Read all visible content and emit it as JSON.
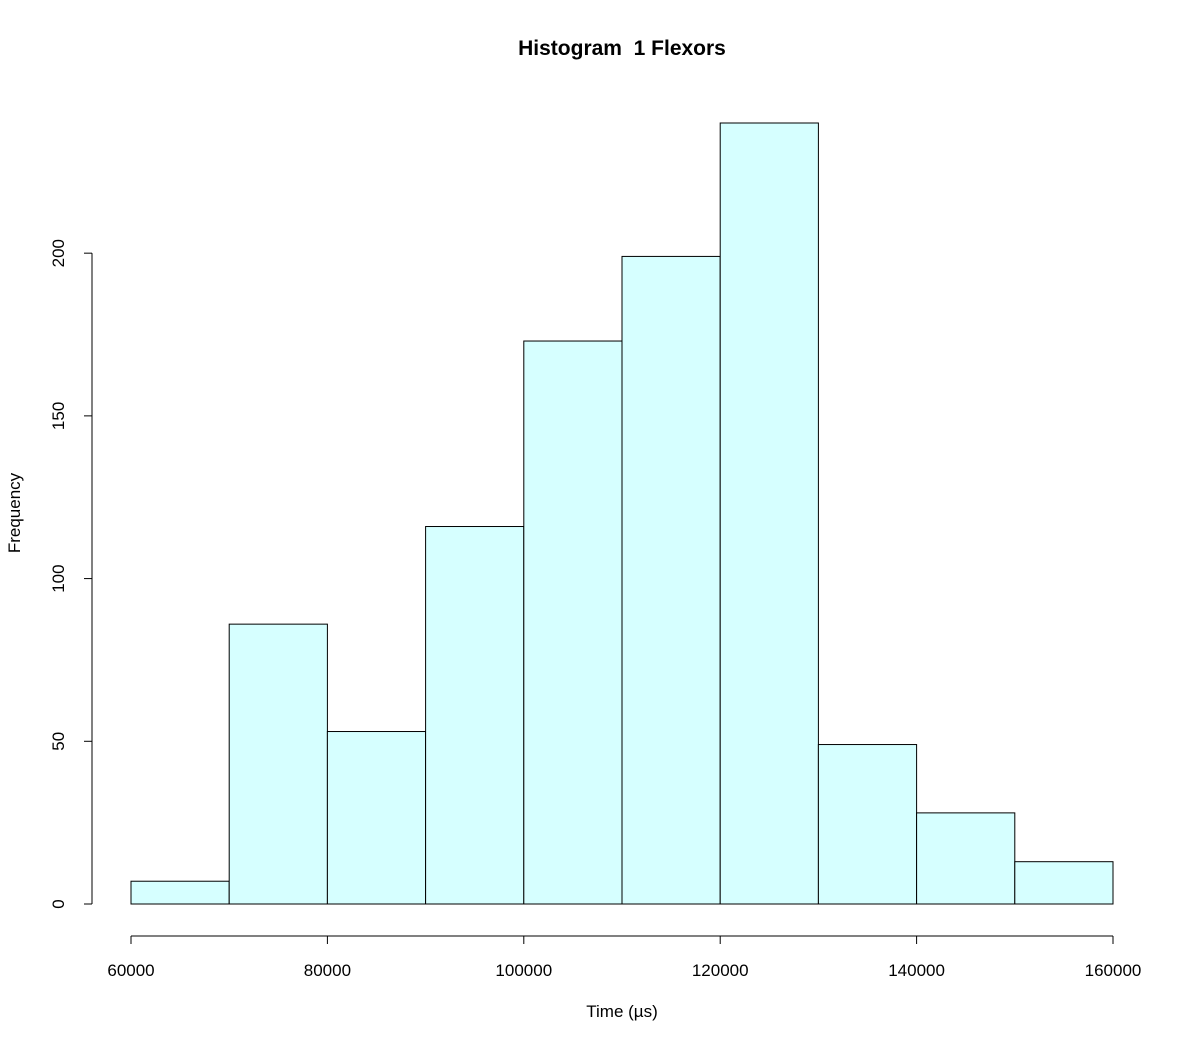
{
  "chart_data": {
    "type": "bar",
    "title": "Histogram  1 Flexors",
    "xlabel": "Time (µs)",
    "ylabel": "Frequency",
    "bin_edges": [
      60000,
      70000,
      80000,
      90000,
      100000,
      110000,
      120000,
      130000,
      140000,
      150000,
      160000
    ],
    "values": [
      7,
      86,
      53,
      116,
      173,
      199,
      240,
      49,
      28,
      13
    ],
    "xlim": [
      60000,
      160000
    ],
    "ylim": [
      0,
      240
    ],
    "x_ticks": [
      60000,
      80000,
      100000,
      120000,
      140000,
      160000
    ],
    "y_ticks": [
      0,
      50,
      100,
      150,
      200
    ],
    "bar_color": "#d6ffff",
    "grid": false
  }
}
